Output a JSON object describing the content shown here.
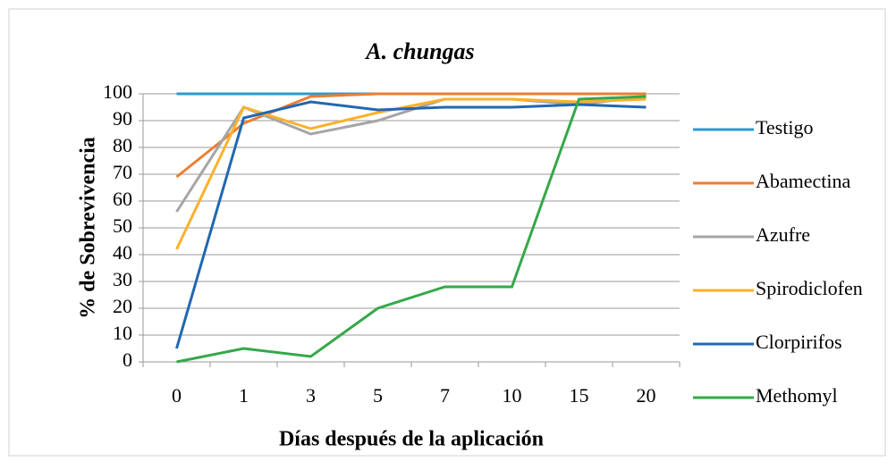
{
  "chart_data": {
    "type": "line",
    "title": "A.  chungas",
    "xlabel": "Días después de la aplicación",
    "ylabel": "% de Sobrevivencia",
    "categories": [
      "0",
      "1",
      "3",
      "5",
      "7",
      "10",
      "15",
      "20"
    ],
    "series": [
      {
        "name": "Testigo",
        "color": "#2a9bd0",
        "values": [
          100,
          100,
          100,
          100,
          100,
          100,
          100,
          100
        ]
      },
      {
        "name": "Abamectina",
        "color": "#ed7d31",
        "values": [
          69,
          89,
          99,
          100,
          100,
          100,
          100,
          100
        ]
      },
      {
        "name": "Azufre",
        "color": "#a5a5a5",
        "values": [
          56,
          95,
          85,
          90,
          98,
          98,
          96,
          99
        ]
      },
      {
        "name": "Spirodiclofen",
        "color": "#fbb12b",
        "values": [
          42,
          95,
          87,
          93,
          98,
          98,
          97,
          98
        ]
      },
      {
        "name": "Clorpirifos",
        "color": "#2168b0",
        "values": [
          5,
          91,
          97,
          94,
          95,
          95,
          96,
          95
        ]
      },
      {
        "name": "Methomyl",
        "color": "#35a84a",
        "values": [
          0,
          5,
          2,
          20,
          28,
          28,
          98,
          99
        ]
      }
    ],
    "ylim": [
      0,
      100
    ],
    "yticks": [
      0,
      10,
      20,
      30,
      40,
      50,
      60,
      70,
      80,
      90,
      100
    ],
    "grid": true,
    "legend": "right"
  }
}
